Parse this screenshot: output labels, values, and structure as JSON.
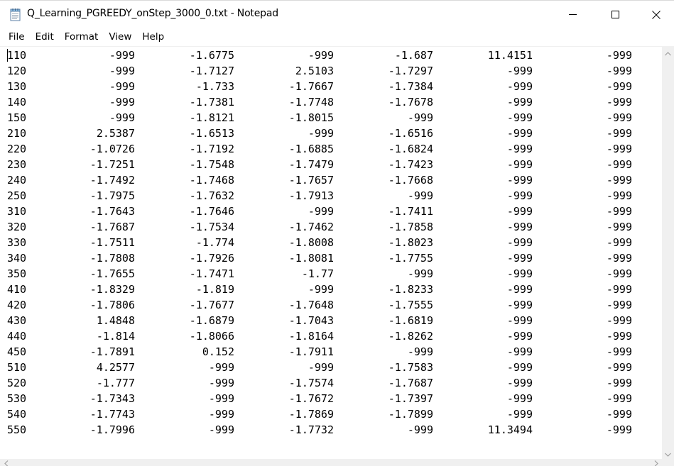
{
  "window": {
    "title": "Q_Learning_PGREEDY_onStep_3000_0.txt - Notepad",
    "app_icon": "notepad-icon"
  },
  "controls": {
    "minimize_icon": "minimize-icon",
    "maximize_icon": "maximize-icon",
    "close_icon": "close-icon"
  },
  "menu": {
    "items": [
      "File",
      "Edit",
      "Format",
      "View",
      "Help"
    ]
  },
  "document": {
    "rows": [
      [
        "110",
        "-999",
        "-1.6775",
        "-999",
        "-1.687",
        "11.4151",
        "-999"
      ],
      [
        "120",
        "-999",
        "-1.7127",
        "2.5103",
        "-1.7297",
        "-999",
        "-999"
      ],
      [
        "130",
        "-999",
        "-1.733",
        "-1.7667",
        "-1.7384",
        "-999",
        "-999"
      ],
      [
        "140",
        "-999",
        "-1.7381",
        "-1.7748",
        "-1.7678",
        "-999",
        "-999"
      ],
      [
        "150",
        "-999",
        "-1.8121",
        "-1.8015",
        "-999",
        "-999",
        "-999"
      ],
      [
        "210",
        "2.5387",
        "-1.6513",
        "-999",
        "-1.6516",
        "-999",
        "-999"
      ],
      [
        "220",
        "-1.0726",
        "-1.7192",
        "-1.6885",
        "-1.6824",
        "-999",
        "-999"
      ],
      [
        "230",
        "-1.7251",
        "-1.7548",
        "-1.7479",
        "-1.7423",
        "-999",
        "-999"
      ],
      [
        "240",
        "-1.7492",
        "-1.7468",
        "-1.7657",
        "-1.7668",
        "-999",
        "-999"
      ],
      [
        "250",
        "-1.7975",
        "-1.7632",
        "-1.7913",
        "-999",
        "-999",
        "-999"
      ],
      [
        "310",
        "-1.7643",
        "-1.7646",
        "-999",
        "-1.7411",
        "-999",
        "-999"
      ],
      [
        "320",
        "-1.7687",
        "-1.7534",
        "-1.7462",
        "-1.7858",
        "-999",
        "-999"
      ],
      [
        "330",
        "-1.7511",
        "-1.774",
        "-1.8008",
        "-1.8023",
        "-999",
        "-999"
      ],
      [
        "340",
        "-1.7808",
        "-1.7926",
        "-1.8081",
        "-1.7755",
        "-999",
        "-999"
      ],
      [
        "350",
        "-1.7655",
        "-1.7471",
        "-1.77",
        "-999",
        "-999",
        "-999"
      ],
      [
        "410",
        "-1.8329",
        "-1.819",
        "-999",
        "-1.8233",
        "-999",
        "-999"
      ],
      [
        "420",
        "-1.7806",
        "-1.7677",
        "-1.7648",
        "-1.7555",
        "-999",
        "-999"
      ],
      [
        "430",
        "1.4848",
        "-1.6879",
        "-1.7043",
        "-1.6819",
        "-999",
        "-999"
      ],
      [
        "440",
        "-1.814",
        "-1.8066",
        "-1.8164",
        "-1.8262",
        "-999",
        "-999"
      ],
      [
        "450",
        "-1.7891",
        "0.152",
        "-1.7911",
        "-999",
        "-999",
        "-999"
      ],
      [
        "510",
        "4.2577",
        "-999",
        "-999",
        "-1.7583",
        "-999",
        "-999"
      ],
      [
        "520",
        "-1.777",
        "-999",
        "-1.7574",
        "-1.7687",
        "-999",
        "-999"
      ],
      [
        "530",
        "-1.7343",
        "-999",
        "-1.7672",
        "-1.7397",
        "-999",
        "-999"
      ],
      [
        "540",
        "-1.7743",
        "-999",
        "-1.7869",
        "-1.7899",
        "-999",
        "-999"
      ],
      [
        "550",
        "-1.7996",
        "-999",
        "-1.7732",
        "-999",
        "11.3494",
        "-999"
      ]
    ]
  },
  "scrollbars": {
    "up_icon": "chevron-up-icon",
    "down_icon": "chevron-down-icon",
    "left_icon": "chevron-left-icon",
    "right_icon": "chevron-right-icon"
  }
}
